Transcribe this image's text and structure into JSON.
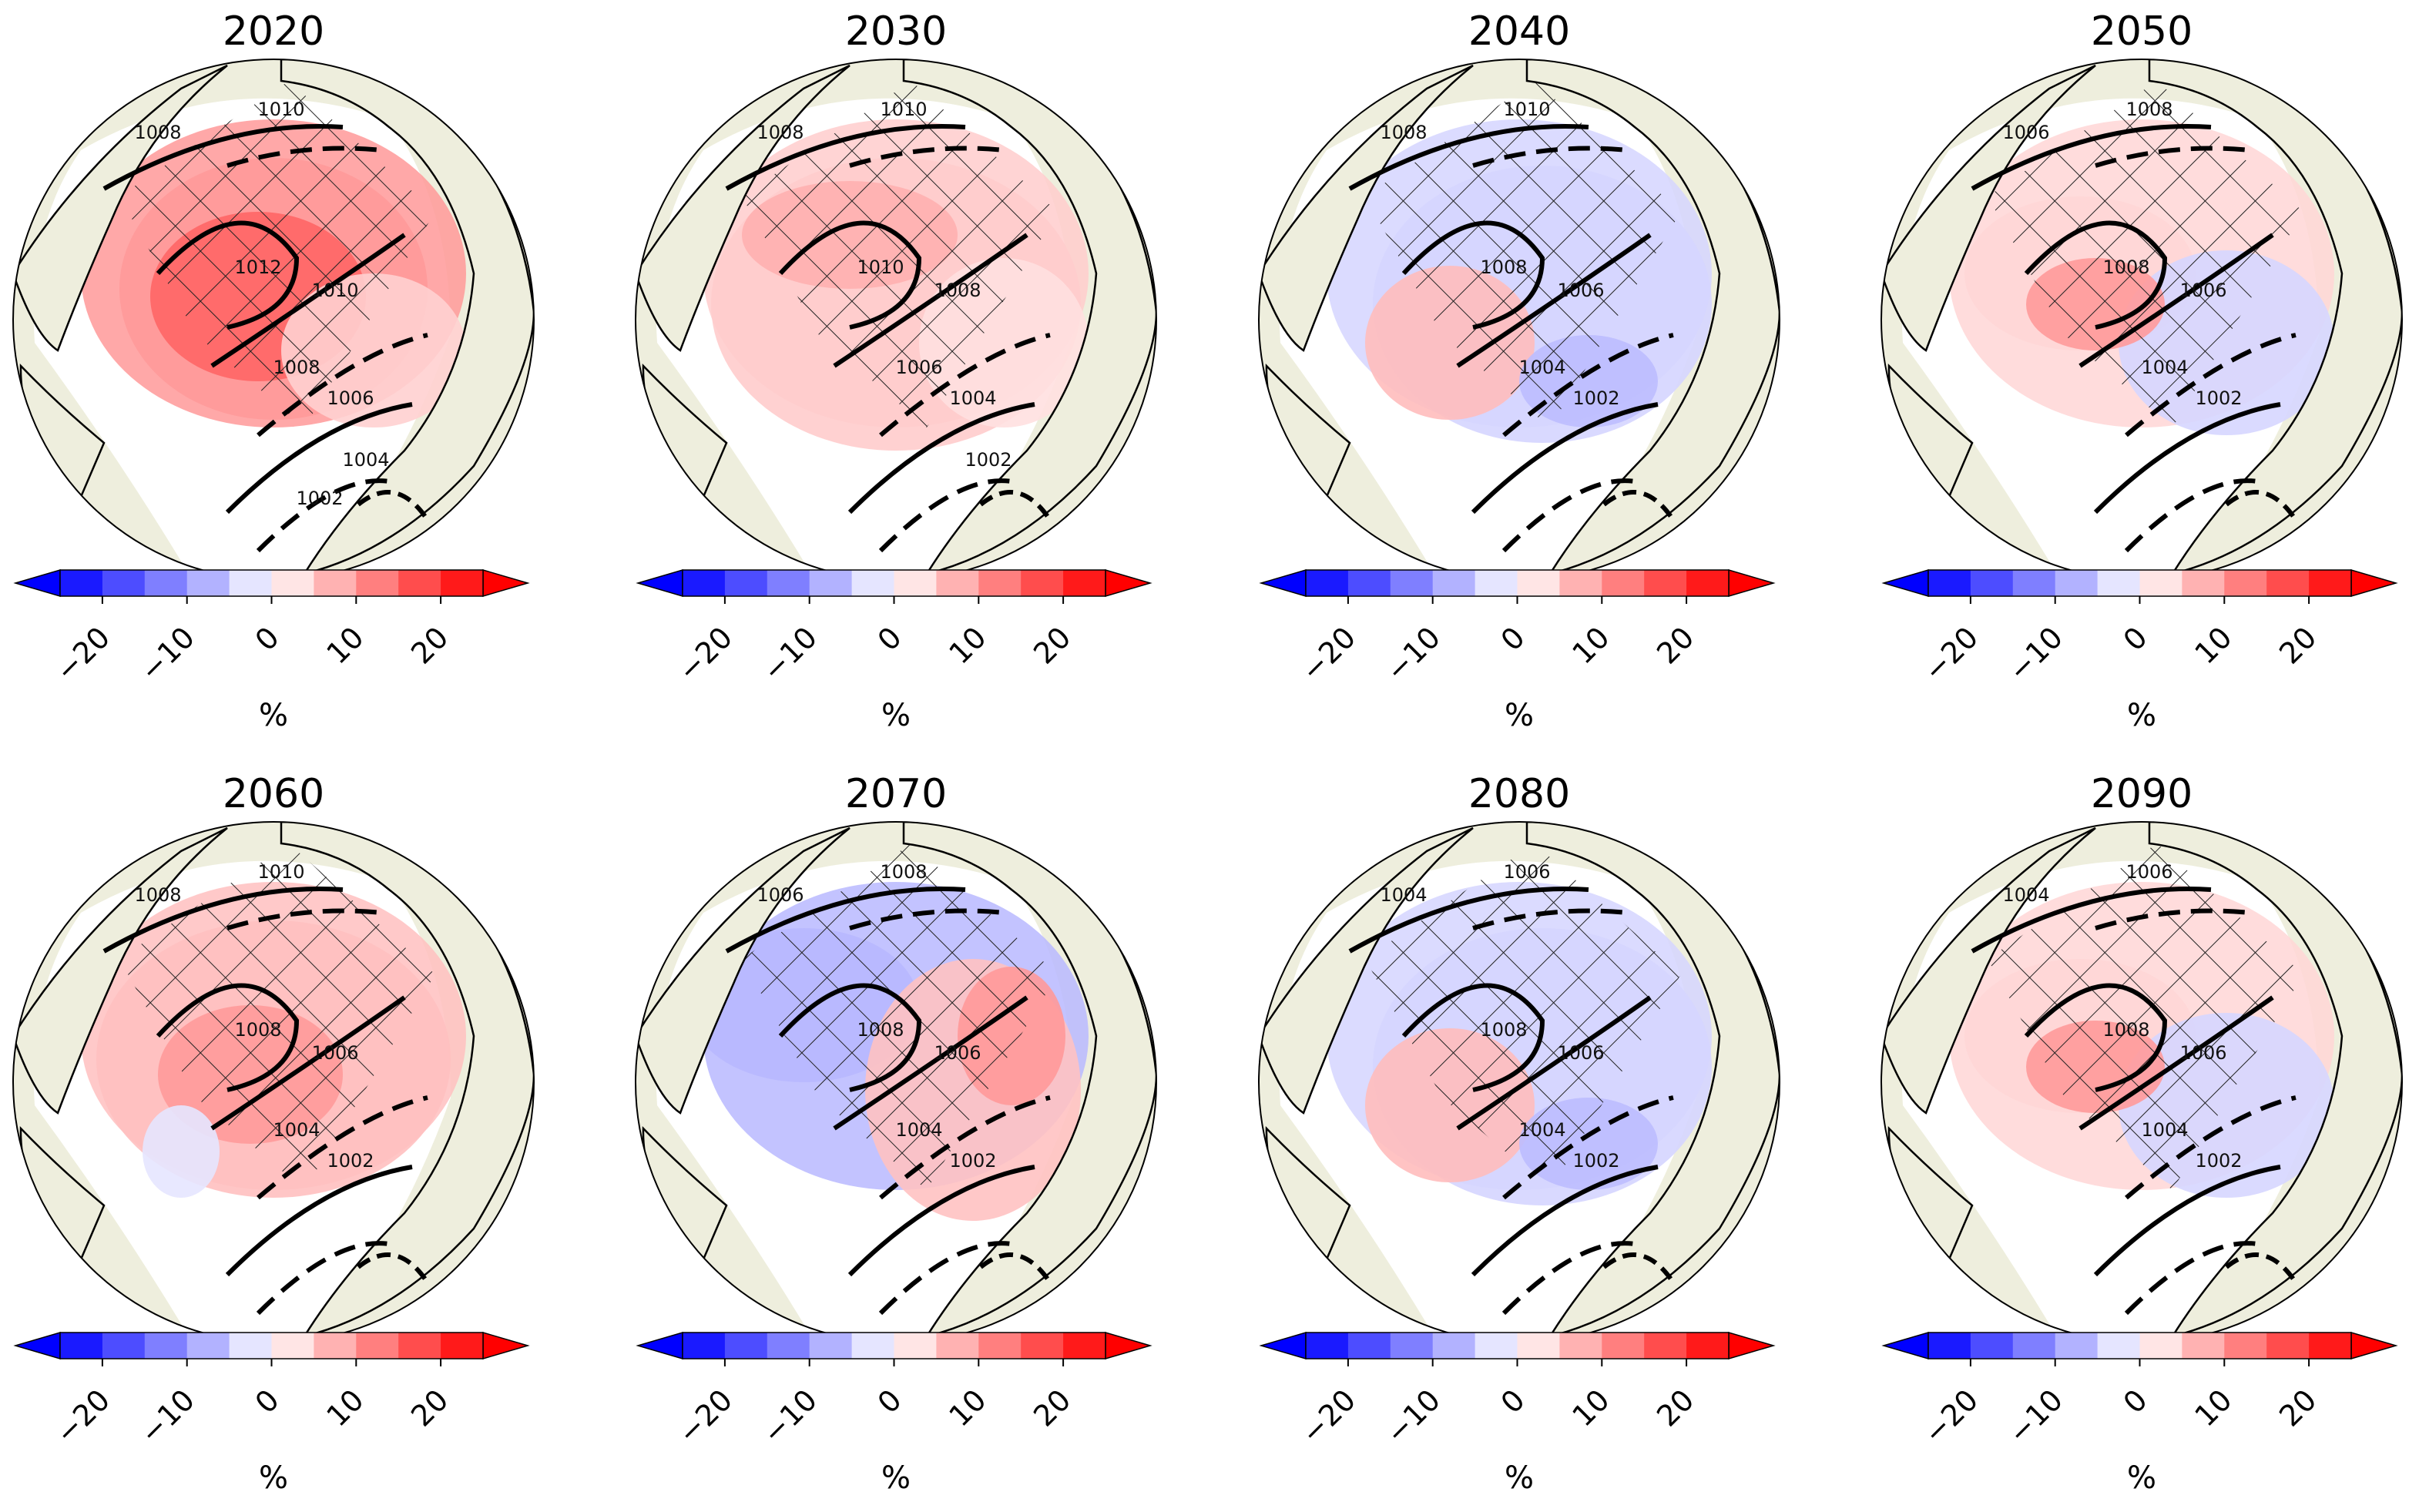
{
  "figure": {
    "panels": [
      {
        "title": "2020",
        "contour_labels": [
          "1008",
          "1010",
          "1012",
          "1010",
          "1008",
          "1006",
          "1004",
          "1002"
        ],
        "anomaly_pattern": "strong-positive"
      },
      {
        "title": "2030",
        "contour_labels": [
          "1008",
          "1010",
          "1010",
          "1008",
          "1006",
          "1004",
          "1002"
        ],
        "anomaly_pattern": "moderate-positive"
      },
      {
        "title": "2040",
        "contour_labels": [
          "1008",
          "1010",
          "1008",
          "1006",
          "1004",
          "1002"
        ],
        "anomaly_pattern": "mixed-negative"
      },
      {
        "title": "2050",
        "contour_labels": [
          "1006",
          "1008",
          "1008",
          "1006",
          "1004",
          "1002"
        ],
        "anomaly_pattern": "mixed"
      },
      {
        "title": "2060",
        "contour_labels": [
          "1008",
          "1010",
          "1008",
          "1006",
          "1004",
          "1002"
        ],
        "anomaly_pattern": "positive"
      },
      {
        "title": "2070",
        "contour_labels": [
          "1006",
          "1008",
          "1008",
          "1006",
          "1004",
          "1002"
        ],
        "anomaly_pattern": "negative-west-positive-east"
      },
      {
        "title": "2080",
        "contour_labels": [
          "1004",
          "1006",
          "1008",
          "1006",
          "1004",
          "1002"
        ],
        "anomaly_pattern": "mixed-negative"
      },
      {
        "title": "2090",
        "contour_labels": [
          "1004",
          "1006",
          "1008",
          "1006",
          "1004",
          "1002"
        ],
        "anomaly_pattern": "mixed"
      }
    ],
    "colorbar": {
      "ticks": [
        "−20",
        "−10",
        "0",
        "10",
        "20"
      ],
      "unit": "%",
      "range": [
        -25,
        25
      ],
      "colors": [
        "#1a1aff",
        "#4d4dff",
        "#7f7fff",
        "#b2b2ff",
        "#e5e5ff",
        "#ffe5e5",
        "#ffb2b2",
        "#ff7f7f",
        "#ff4d4d",
        "#ff1a1a"
      ],
      "extend": "both"
    },
    "land_color": "#eeeedd",
    "ocean_color": "#ffffff"
  }
}
